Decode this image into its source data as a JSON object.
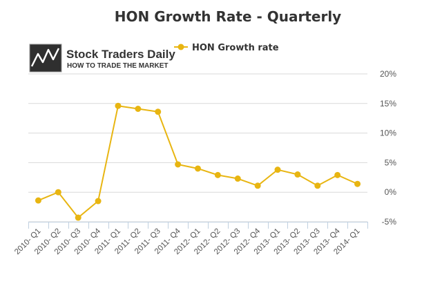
{
  "chart_data": {
    "type": "line",
    "title": "HON Growth Rate - Quarterly",
    "xlabel": "",
    "ylabel": "",
    "categories": [
      "2010- Q1",
      "2010- Q2",
      "2010- Q3",
      "2010- Q4",
      "2011- Q1",
      "2011- Q2",
      "2011- Q3",
      "2011- Q4",
      "2012- Q1",
      "2012- Q2",
      "2012- Q3",
      "2012- Q4",
      "2013- Q1",
      "2013- Q2",
      "2013- Q3",
      "2013- Q4",
      "2014- Q1"
    ],
    "series": [
      {
        "name": "HON Growth rate",
        "color": "#e8b511",
        "values": [
          -1.4,
          0.0,
          -4.3,
          -1.5,
          14.6,
          14.1,
          13.6,
          4.7,
          4.0,
          2.9,
          2.3,
          1.1,
          3.8,
          3.0,
          1.1,
          2.9,
          1.4
        ]
      }
    ],
    "ylim": [
      -5,
      20
    ],
    "yticks": [
      -5,
      0,
      5,
      10,
      15,
      20
    ],
    "ytick_labels": [
      "-5%",
      "0%",
      "5%",
      "10%",
      "15%",
      "20%"
    ],
    "grid": true,
    "y_axis_side": "right",
    "legend_position": "top"
  },
  "logo": {
    "name": "Stock Traders Daily",
    "tagline": "HOW TO TRADE THE MARKET"
  }
}
